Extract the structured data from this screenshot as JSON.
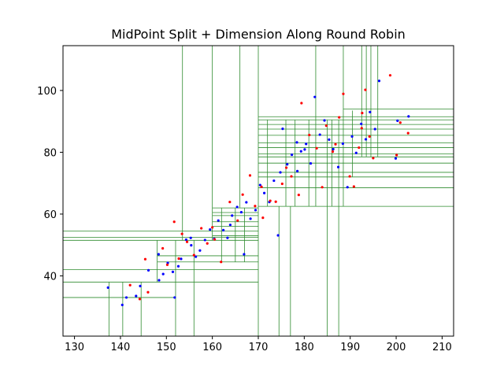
{
  "chart_data": {
    "type": "scatter",
    "title": "MidPoint Split + Dimension Along Round Robin",
    "xlabel": "",
    "ylabel": "",
    "xlim": [
      127.5,
      212.5
    ],
    "ylim": [
      20.5,
      114.5
    ],
    "xticks": [
      130,
      140,
      150,
      160,
      170,
      180,
      190,
      200,
      210
    ],
    "yticks": [
      40,
      60,
      80,
      100
    ],
    "grid": false,
    "legend": "none",
    "colors": {
      "blue_points": "#0000ff",
      "red_points": "#ff0000",
      "split_lines": "#2e8b2e"
    },
    "series": [
      {
        "color": "blue",
        "points": [
          [
            137.3,
            36.2
          ],
          [
            140.4,
            30.6
          ],
          [
            141.3,
            33.0
          ],
          [
            143.4,
            33.5
          ],
          [
            144.3,
            36.7
          ],
          [
            146.1,
            41.8
          ],
          [
            148.4,
            38.6
          ],
          [
            149.3,
            40.6
          ],
          [
            150.3,
            44.2
          ],
          [
            151.8,
            33.0
          ],
          [
            151.4,
            41.3
          ],
          [
            152.6,
            43.1
          ],
          [
            153.2,
            45.5
          ],
          [
            154.3,
            51.7
          ],
          [
            155.4,
            49.9
          ],
          [
            156.4,
            46.2
          ],
          [
            157.3,
            48.2
          ],
          [
            158.4,
            51.6
          ],
          [
            159.5,
            55.0
          ],
          [
            160.4,
            52.0
          ],
          [
            161.3,
            57.9
          ],
          [
            162.4,
            54.8
          ],
          [
            163.3,
            52.3
          ],
          [
            164.3,
            59.5
          ],
          [
            165.4,
            62.3
          ],
          [
            166.3,
            60.6
          ],
          [
            166.9,
            47.0
          ],
          [
            167.4,
            63.8
          ],
          [
            168.3,
            58.5
          ],
          [
            169.4,
            61.3
          ],
          [
            170.4,
            69.4
          ],
          [
            171.3,
            66.8
          ],
          [
            172.4,
            63.9
          ],
          [
            173.4,
            70.8
          ],
          [
            174.3,
            53.1
          ],
          [
            174.8,
            73.5
          ],
          [
            175.3,
            87.6
          ],
          [
            176.3,
            76.1
          ],
          [
            177.3,
            79.2
          ],
          [
            178.4,
            83.2
          ],
          [
            179.3,
            80.3
          ],
          [
            180.4,
            82.7
          ],
          [
            181.4,
            76.4
          ],
          [
            182.3,
            97.9
          ],
          [
            183.4,
            85.7
          ],
          [
            184.4,
            90.3
          ],
          [
            185.4,
            84.1
          ],
          [
            186.3,
            81.0
          ],
          [
            187.4,
            75.2
          ],
          [
            188.4,
            82.8
          ],
          [
            189.4,
            68.7
          ],
          [
            190.4,
            85.1
          ],
          [
            191.3,
            79.8
          ],
          [
            192.4,
            89.2
          ],
          [
            193.4,
            84.2
          ],
          [
            194.3,
            93.0
          ],
          [
            195.4,
            87.5
          ],
          [
            196.3,
            103.1
          ],
          [
            199.9,
            78.0
          ],
          [
            200.3,
            90.2
          ],
          [
            202.7,
            91.6
          ],
          [
            148.3,
            47.0
          ],
          [
            155.3,
            52.3
          ],
          [
            163.9,
            56.5
          ],
          [
            178.5,
            73.9
          ],
          [
            180.1,
            80.9
          ]
        ]
      },
      {
        "color": "red",
        "points": [
          [
            142.1,
            37.0
          ],
          [
            144.2,
            32.5
          ],
          [
            145.4,
            45.4
          ],
          [
            146.0,
            34.7
          ],
          [
            149.2,
            48.9
          ],
          [
            150.2,
            43.6
          ],
          [
            151.7,
            57.5
          ],
          [
            152.7,
            45.6
          ],
          [
            154.5,
            51.0
          ],
          [
            156.0,
            46.7
          ],
          [
            157.6,
            55.4
          ],
          [
            158.9,
            50.5
          ],
          [
            160.5,
            51.8
          ],
          [
            161.9,
            44.5
          ],
          [
            163.8,
            63.9
          ],
          [
            165.5,
            57.9
          ],
          [
            166.6,
            66.3
          ],
          [
            168.2,
            72.5
          ],
          [
            169.3,
            62.6
          ],
          [
            171.0,
            58.8
          ],
          [
            172.6,
            64.3
          ],
          [
            173.8,
            64.0
          ],
          [
            175.2,
            69.8
          ],
          [
            176.1,
            75.0
          ],
          [
            177.2,
            72.2
          ],
          [
            178.8,
            66.2
          ],
          [
            179.4,
            95.9
          ],
          [
            181.1,
            85.6
          ],
          [
            182.7,
            81.3
          ],
          [
            183.9,
            68.7
          ],
          [
            184.8,
            88.6
          ],
          [
            186.2,
            80.2
          ],
          [
            187.6,
            91.3
          ],
          [
            188.5,
            98.9
          ],
          [
            189.9,
            72.2
          ],
          [
            190.8,
            68.9
          ],
          [
            191.9,
            81.5
          ],
          [
            192.6,
            92.7
          ],
          [
            193.3,
            100.2
          ],
          [
            194.2,
            85.1
          ],
          [
            195.0,
            78.1
          ],
          [
            198.7,
            104.9
          ],
          [
            200.1,
            79.1
          ],
          [
            200.9,
            89.6
          ],
          [
            202.6,
            86.2
          ],
          [
            153.4,
            53.6
          ],
          [
            160.0,
            55.7
          ],
          [
            170.7,
            68.8
          ],
          [
            186.8,
            82.6
          ],
          [
            192.5,
            87.8
          ]
        ]
      }
    ],
    "split_lines": {
      "vertical": [
        [
          137.5,
          20.5,
          38.0
        ],
        [
          140.5,
          20.5,
          38.0
        ],
        [
          144.5,
          20.5,
          38.0
        ],
        [
          148.0,
          38.0,
          51.5
        ],
        [
          152.0,
          20.5,
          51.5
        ],
        [
          153.5,
          51.5,
          114.5
        ],
        [
          156.0,
          20.5,
          51.5
        ],
        [
          160.0,
          51.5,
          114.5
        ],
        [
          162.0,
          44.5,
          62.0
        ],
        [
          165.0,
          44.5,
          62.0
        ],
        [
          166.0,
          62.0,
          114.5
        ],
        [
          167.0,
          44.5,
          62.0
        ],
        [
          170.0,
          20.5,
          114.5
        ],
        [
          172.0,
          62.5,
          90.5
        ],
        [
          174.5,
          20.5,
          62.5
        ],
        [
          176.0,
          62.5,
          90.5
        ],
        [
          177.0,
          20.5,
          62.5
        ],
        [
          178.0,
          62.5,
          90.5
        ],
        [
          181.0,
          62.5,
          90.5
        ],
        [
          182.5,
          62.5,
          114.5
        ],
        [
          185.0,
          20.5,
          90.5
        ],
        [
          186.0,
          62.5,
          90.5
        ],
        [
          187.5,
          20.5,
          90.5
        ],
        [
          188.5,
          62.5,
          114.5
        ],
        [
          190.5,
          72.0,
          93.5
        ],
        [
          192.5,
          78.5,
          114.5
        ],
        [
          193.5,
          78.5,
          114.5
        ],
        [
          194.5,
          78.5,
          114.5
        ],
        [
          196.0,
          78.5,
          114.5
        ]
      ],
      "horizontal": [
        [
          127.5,
          170.0,
          54.5
        ],
        [
          127.5,
          170.0,
          52.5
        ],
        [
          127.5,
          170.0,
          51.5
        ],
        [
          127.5,
          170.0,
          42.0
        ],
        [
          127.5,
          170.0,
          38.0
        ],
        [
          127.5,
          152.0,
          33.0
        ],
        [
          148.0,
          170.0,
          46.5
        ],
        [
          148.0,
          170.0,
          44.5
        ],
        [
          160.0,
          170.0,
          62.0
        ],
        [
          160.0,
          170.0,
          60.5
        ],
        [
          160.0,
          170.0,
          59.5
        ],
        [
          160.0,
          170.0,
          57.5
        ],
        [
          160.0,
          170.0,
          56.0
        ],
        [
          160.0,
          170.0,
          53.0
        ],
        [
          170.0,
          212.5,
          62.5
        ],
        [
          170.0,
          212.5,
          68.5
        ],
        [
          170.0,
          212.5,
          72.0
        ],
        [
          170.0,
          212.5,
          73.5
        ],
        [
          170.0,
          212.5,
          76.5
        ],
        [
          170.0,
          212.5,
          78.5
        ],
        [
          170.0,
          212.5,
          79.5
        ],
        [
          170.0,
          212.5,
          81.5
        ],
        [
          170.0,
          212.5,
          83.0
        ],
        [
          170.0,
          212.5,
          85.5
        ],
        [
          170.0,
          212.5,
          87.5
        ],
        [
          170.0,
          212.5,
          89.0
        ],
        [
          170.0,
          212.5,
          90.5
        ],
        [
          170.0,
          212.5,
          91.5
        ],
        [
          188.5,
          212.5,
          94.0
        ]
      ]
    }
  }
}
